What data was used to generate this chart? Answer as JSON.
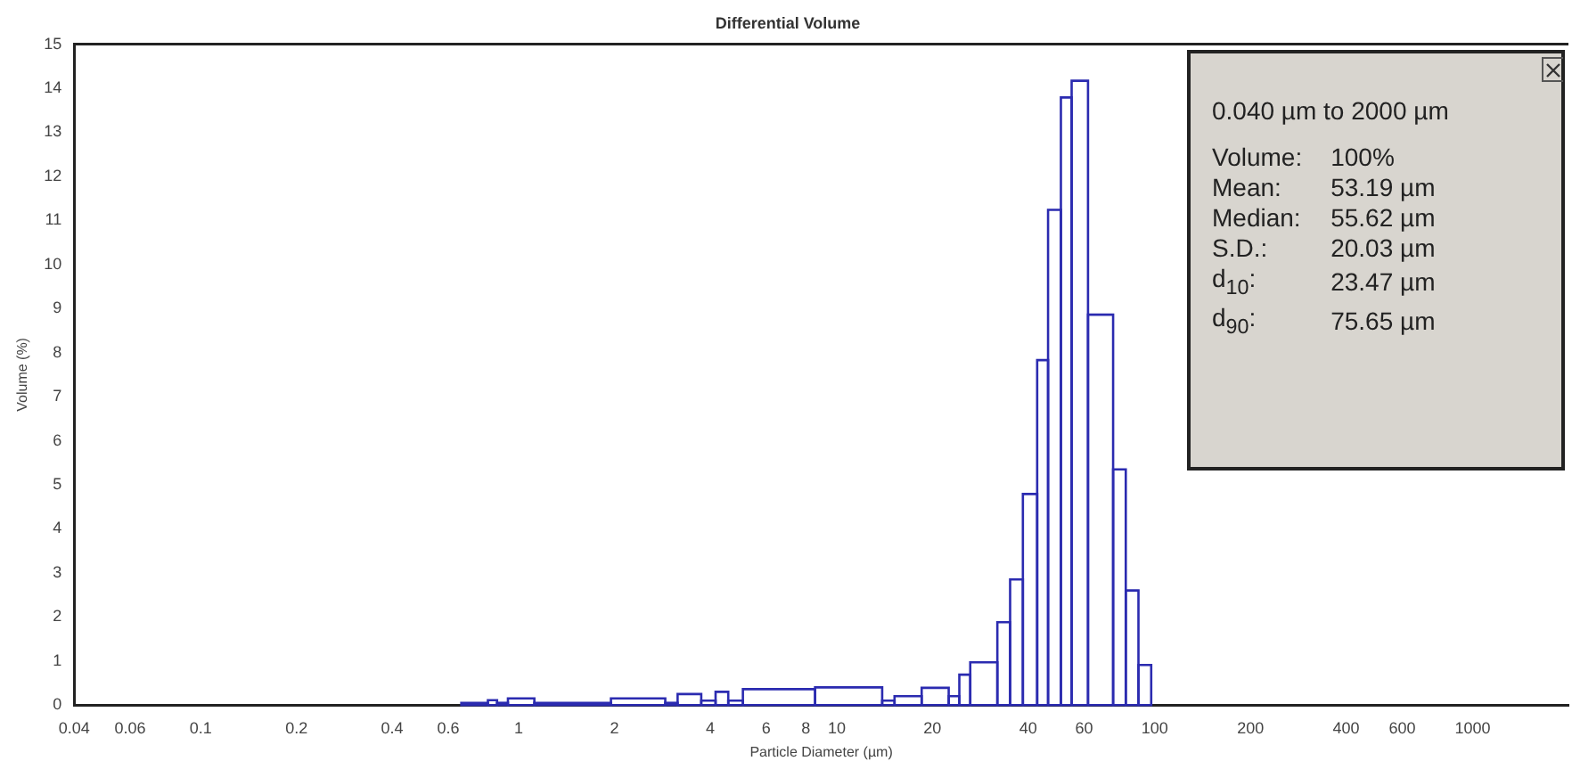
{
  "chart_data": {
    "type": "histogram",
    "title": "Differential Volume",
    "xlabel": "Particle Diameter (µm)",
    "ylabel": "Volume (%)",
    "bins": [
      0.66,
      0.8,
      0.855,
      0.925,
      1.12,
      1.95,
      2.89,
      3.16,
      3.75,
      4.16,
      4.56,
      5.07,
      8.55,
      13.9,
      15.2,
      18.5,
      22.5,
      24.3,
      26.3,
      32.0,
      35.1,
      38.5,
      42.7,
      46.2,
      50.7,
      54.8,
      61.7,
      74.0,
      81.1,
      88.9,
      97.5
    ],
    "values": [
      0.05,
      0.11,
      0.05,
      0.15,
      0.05,
      0.15,
      0.05,
      0.25,
      0.1,
      0.3,
      0.1,
      0.36,
      0.4,
      0.1,
      0.2,
      0.39,
      0.2,
      0.69,
      0.97,
      1.88,
      2.85,
      4.79,
      7.83,
      11.24,
      13.79,
      14.17,
      8.86,
      5.35,
      2.6,
      0.91
    ],
    "color": "#2b2bb0",
    "log": "x",
    "xlim": [
      0.04,
      2000
    ],
    "xticks": [
      0.04,
      0.06,
      0.1,
      0.2,
      0.4,
      0.6,
      1,
      2,
      4,
      6,
      8,
      10,
      20,
      40,
      60,
      100,
      200,
      400,
      600,
      1000
    ],
    "ylim": [
      0,
      15
    ],
    "yticks": [
      0,
      1,
      2,
      3,
      4,
      5,
      6,
      7,
      8,
      9,
      10,
      11,
      12,
      13,
      14,
      15
    ],
    "grid": false,
    "legend": false,
    "annotations": [
      "0.040 µm to 2000 µm",
      "Volume: 100%",
      "Mean: 53.19 µm",
      "Median: 55.62 µm",
      "S.D.: 20.03 µm",
      "d$_{10}$: 23.47 µm",
      "d$_{90}$: 75.65 µm"
    ]
  }
}
